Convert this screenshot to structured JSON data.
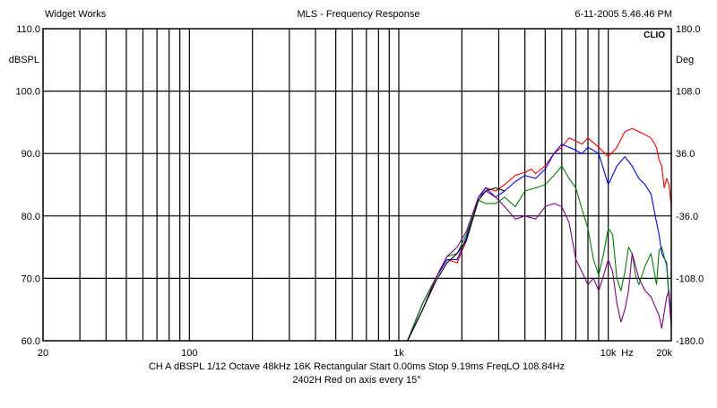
{
  "header": {
    "left": "Widget Works",
    "center": "MLS - Frequency Response",
    "right": "6-11-2005 5.46.46 PM"
  },
  "brand": "CLIO",
  "footer": {
    "line1": "CH A   dBSPL   1/12 Octave   48kHz   16K   Rectangular   Start 0.00ms     Stop 9.19ms     FreqLO 108.84Hz",
    "line2": "2402H Red on axis every 15°"
  },
  "colors": {
    "background": "#ffffff",
    "grid": "#000000",
    "series": [
      "#ff0000",
      "#0000ff",
      "#008000",
      "#800080",
      "#000000"
    ]
  },
  "chart_data": {
    "type": "line",
    "title": "MLS - Frequency Response",
    "xscale": "log",
    "xlim": [
      20,
      20000
    ],
    "ylim": [
      60,
      110
    ],
    "y2lim": [
      -180,
      180
    ],
    "ylabel": "dBSPL",
    "y2label": "Deg",
    "xunit": "Hz",
    "grid": true,
    "legend": "none",
    "x_tick_labels": [
      {
        "value": 20,
        "label": "20"
      },
      {
        "value": 100,
        "label": "100"
      },
      {
        "value": 1000,
        "label": "1k"
      },
      {
        "value": 10000,
        "label": "10k"
      },
      {
        "value": 20000,
        "label": "20k"
      }
    ],
    "x_grid": [
      30,
      40,
      50,
      60,
      70,
      80,
      90,
      100,
      200,
      300,
      400,
      500,
      600,
      700,
      800,
      900,
      1000,
      2000,
      3000,
      4000,
      5000,
      6000,
      7000,
      8000,
      9000,
      10000
    ],
    "y_ticks": [
      "110.0",
      "100.0",
      "90.0",
      "80.0",
      "70.0",
      "60.0"
    ],
    "y2_ticks": [
      "180.0",
      "108.0",
      "36.0",
      "-36.0",
      "-108.0",
      "-180.0"
    ],
    "series": [
      {
        "color": "#ff0000",
        "points": [
          [
            1100,
            60
          ],
          [
            1300,
            66
          ],
          [
            1500,
            70
          ],
          [
            1700,
            73
          ],
          [
            1900,
            72.5
          ],
          [
            2100,
            76
          ],
          [
            2400,
            83
          ],
          [
            2600,
            84.5
          ],
          [
            2900,
            84
          ],
          [
            3200,
            85
          ],
          [
            3600,
            86.5
          ],
          [
            4000,
            87
          ],
          [
            4300,
            87.5
          ],
          [
            4500,
            86.8
          ],
          [
            5000,
            88
          ],
          [
            5500,
            90
          ],
          [
            6000,
            91
          ],
          [
            6500,
            92.5
          ],
          [
            7000,
            92
          ],
          [
            7500,
            91.5
          ],
          [
            8000,
            92.5
          ],
          [
            9000,
            91
          ],
          [
            10000,
            89.5
          ],
          [
            11000,
            91
          ],
          [
            12000,
            93.5
          ],
          [
            13000,
            94
          ],
          [
            14000,
            93.5
          ],
          [
            15000,
            93
          ],
          [
            16000,
            92.5
          ],
          [
            17000,
            91
          ],
          [
            17500,
            89
          ],
          [
            18000,
            88
          ],
          [
            18500,
            84.5
          ],
          [
            19000,
            86
          ],
          [
            19500,
            85
          ],
          [
            20000,
            81.5
          ]
        ]
      },
      {
        "color": "#0000ff",
        "points": [
          [
            1100,
            60
          ],
          [
            1300,
            66
          ],
          [
            1500,
            70
          ],
          [
            1700,
            73
          ],
          [
            1900,
            73
          ],
          [
            2100,
            76.5
          ],
          [
            2400,
            83
          ],
          [
            2600,
            84.5
          ],
          [
            2900,
            83
          ],
          [
            3200,
            84
          ],
          [
            3600,
            85.5
          ],
          [
            4000,
            86.5
          ],
          [
            4500,
            86
          ],
          [
            5000,
            87.5
          ],
          [
            5500,
            90
          ],
          [
            6000,
            91.5
          ],
          [
            6500,
            91
          ],
          [
            7000,
            90.5
          ],
          [
            7500,
            90
          ],
          [
            8000,
            91
          ],
          [
            9000,
            90
          ],
          [
            10000,
            85
          ],
          [
            11000,
            88
          ],
          [
            12000,
            89.5
          ],
          [
            13000,
            88
          ],
          [
            14000,
            86
          ],
          [
            15000,
            85
          ],
          [
            16000,
            83.5
          ],
          [
            17000,
            79
          ],
          [
            17500,
            77
          ],
          [
            18000,
            74
          ],
          [
            19000,
            72.5
          ],
          [
            19500,
            67
          ],
          [
            20000,
            62.5
          ]
        ]
      },
      {
        "color": "#008000",
        "points": [
          [
            1100,
            60
          ],
          [
            1300,
            66
          ],
          [
            1500,
            70
          ],
          [
            1700,
            73.5
          ],
          [
            1900,
            74
          ],
          [
            2100,
            77
          ],
          [
            2400,
            82.5
          ],
          [
            2600,
            82
          ],
          [
            2900,
            82
          ],
          [
            3200,
            83
          ],
          [
            3600,
            81.5
          ],
          [
            4000,
            84
          ],
          [
            4500,
            84.5
          ],
          [
            5000,
            85
          ],
          [
            5500,
            86.5
          ],
          [
            6000,
            88
          ],
          [
            6500,
            86
          ],
          [
            7000,
            84.5
          ],
          [
            7500,
            81
          ],
          [
            8000,
            78
          ],
          [
            8500,
            73
          ],
          [
            9000,
            70.5
          ],
          [
            9500,
            74
          ],
          [
            10000,
            78
          ],
          [
            10500,
            77
          ],
          [
            11000,
            70
          ],
          [
            11500,
            68
          ],
          [
            12000,
            71
          ],
          [
            12500,
            75
          ],
          [
            13000,
            74
          ],
          [
            13500,
            70.5
          ],
          [
            14000,
            69
          ],
          [
            15000,
            72
          ],
          [
            16000,
            74
          ],
          [
            17000,
            69
          ],
          [
            17500,
            74.5
          ],
          [
            18000,
            75
          ],
          [
            19000,
            72
          ],
          [
            19500,
            67
          ],
          [
            20000,
            65
          ]
        ]
      },
      {
        "color": "#800080",
        "points": [
          [
            1100,
            60
          ],
          [
            1300,
            65
          ],
          [
            1500,
            70
          ],
          [
            1700,
            73.5
          ],
          [
            1900,
            75
          ],
          [
            2100,
            77.5
          ],
          [
            2400,
            83
          ],
          [
            2600,
            84
          ],
          [
            2900,
            83
          ],
          [
            3200,
            81.5
          ],
          [
            3600,
            79.5
          ],
          [
            4000,
            80
          ],
          [
            4500,
            79.5
          ],
          [
            5000,
            81.5
          ],
          [
            5500,
            82
          ],
          [
            6000,
            81.5
          ],
          [
            6500,
            79
          ],
          [
            7000,
            73
          ],
          [
            7500,
            71
          ],
          [
            8000,
            69
          ],
          [
            8500,
            70
          ],
          [
            9000,
            68
          ],
          [
            9500,
            70.5
          ],
          [
            10000,
            73
          ],
          [
            10500,
            71
          ],
          [
            11000,
            66
          ],
          [
            11500,
            63
          ],
          [
            12000,
            65
          ],
          [
            12500,
            68
          ],
          [
            13000,
            74
          ],
          [
            13500,
            72
          ],
          [
            14000,
            70
          ],
          [
            15000,
            68
          ],
          [
            16000,
            67
          ],
          [
            17000,
            65
          ],
          [
            17500,
            64
          ],
          [
            18000,
            62
          ],
          [
            19000,
            67
          ],
          [
            19500,
            68
          ],
          [
            20000,
            62
          ]
        ]
      },
      {
        "color": "#000000",
        "points": [
          [
            1100,
            60
          ],
          [
            1300,
            65
          ],
          [
            1500,
            69.5
          ],
          [
            1700,
            72.5
          ],
          [
            1900,
            74
          ],
          [
            2100,
            76
          ],
          [
            2400,
            82.5
          ],
          [
            2600,
            84
          ],
          [
            2900,
            84.5
          ],
          [
            3200,
            84
          ]
        ]
      }
    ]
  }
}
